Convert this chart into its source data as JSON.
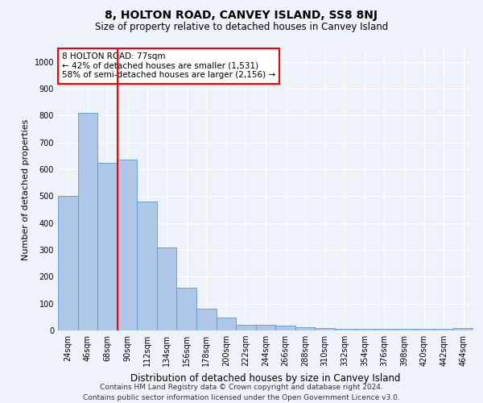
{
  "title": "8, HOLTON ROAD, CANVEY ISLAND, SS8 8NJ",
  "subtitle": "Size of property relative to detached houses in Canvey Island",
  "xlabel": "Distribution of detached houses by size in Canvey Island",
  "ylabel": "Number of detached properties",
  "categories": [
    "24sqm",
    "46sqm",
    "68sqm",
    "90sqm",
    "112sqm",
    "134sqm",
    "156sqm",
    "178sqm",
    "200sqm",
    "222sqm",
    "244sqm",
    "266sqm",
    "288sqm",
    "310sqm",
    "332sqm",
    "354sqm",
    "376sqm",
    "398sqm",
    "420sqm",
    "442sqm",
    "464sqm"
  ],
  "values": [
    500,
    810,
    625,
    635,
    480,
    310,
    160,
    80,
    48,
    22,
    22,
    18,
    12,
    8,
    5,
    5,
    5,
    5,
    5,
    5,
    8
  ],
  "bar_color": "#aec6e8",
  "bar_edge_color": "#5b9bd5",
  "property_line_x": 2.5,
  "property_label": "8 HOLTON ROAD: 77sqm",
  "annotation_line1": "← 42% of detached houses are smaller (1,531)",
  "annotation_line2": "58% of semi-detached houses are larger (2,156) →",
  "ylim": [
    0,
    1050
  ],
  "yticks": [
    0,
    100,
    200,
    300,
    400,
    500,
    600,
    700,
    800,
    900,
    1000
  ],
  "footer_line1": "Contains HM Land Registry data © Crown copyright and database right 2024.",
  "footer_line2": "Contains public sector information licensed under the Open Government Licence v3.0.",
  "background_color": "#eef2f9",
  "grid_color": "#ffffff",
  "title_fontsize": 10,
  "subtitle_fontsize": 8.5,
  "axis_label_fontsize": 8,
  "tick_fontsize": 7,
  "annotation_fontsize": 7.5,
  "footer_fontsize": 6.5
}
